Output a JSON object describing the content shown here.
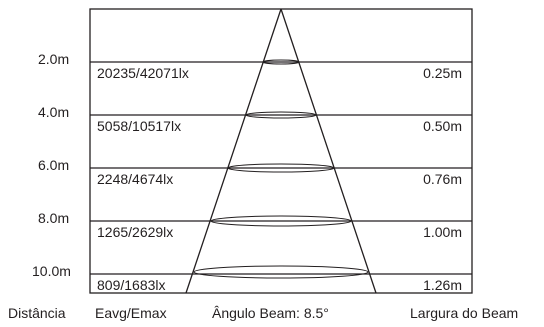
{
  "rows": [
    {
      "distance": "2.0m",
      "lux": "20235/42071lx",
      "beam_width": "0.25m"
    },
    {
      "distance": "4.0m",
      "lux": "5058/10517lx",
      "beam_width": "0.50m"
    },
    {
      "distance": "6.0m",
      "lux": "2248/4674lx",
      "beam_width": "0.76m"
    },
    {
      "distance": "8.0m",
      "lux": "1265/2629lx",
      "beam_width": "1.00m"
    },
    {
      "distance": "10.0m",
      "lux": "809/1683lx",
      "beam_width": "1.26m"
    }
  ],
  "footer": {
    "distance_label": "Distância",
    "lux_label": "Eavg/Emax",
    "angle_label": "Ângulo Beam: 8.5°",
    "width_label": "Largura do Beam"
  },
  "colors": {
    "line": "#231f20",
    "text": "#231f20",
    "background": "#ffffff"
  }
}
